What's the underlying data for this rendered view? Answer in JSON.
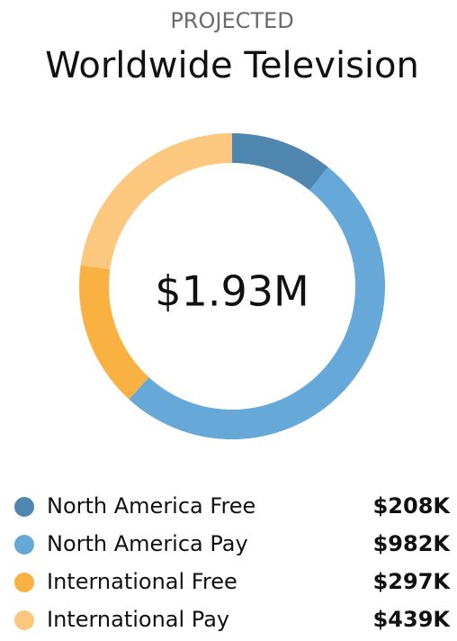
{
  "chart_data": {
    "type": "donut",
    "subtitle": "PROJECTED",
    "title": "Worldwide Television",
    "center_label": "$1.93M",
    "categories": [
      "North America Free",
      "North America Pay",
      "International Free",
      "International Pay"
    ],
    "values": [
      208,
      982,
      297,
      439
    ],
    "value_labels": [
      "$208K",
      "$982K",
      "$297K",
      "$439K"
    ],
    "colors": [
      "#4e86b0",
      "#66a9d9",
      "#f9b141",
      "#fcc880"
    ]
  }
}
